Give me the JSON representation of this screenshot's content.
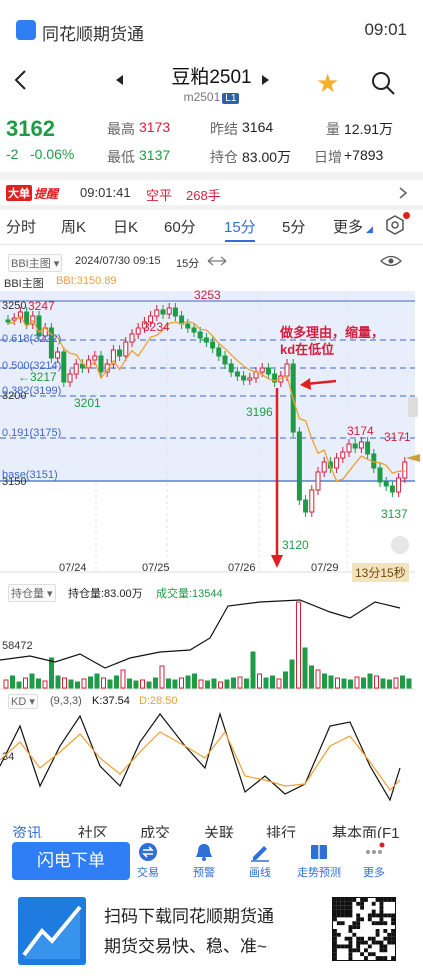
{
  "status": {
    "app_name": "同花顺期货通",
    "time": "09:01"
  },
  "header": {
    "title": "豆粕2501",
    "code": "m2501",
    "badge": "L1"
  },
  "quote": {
    "price": "3162",
    "change": "-2",
    "change_pct": "-0.06%",
    "high_label": "最高",
    "high": "3173",
    "low_label": "最低",
    "low": "3137",
    "prev_settle_label": "昨结",
    "prev_settle": "3164",
    "oi_label": "持仓",
    "oi": "83.00万",
    "vol_label": "量",
    "vol": "12.91万",
    "daily_inc_label": "日增",
    "daily_inc": "+7893"
  },
  "alert": {
    "tag1": "大单",
    "tag2": "提醒",
    "time": "09:01:41",
    "type": "空平",
    "qty": "268手"
  },
  "tabs": [
    {
      "label": "分时"
    },
    {
      "label": "周K"
    },
    {
      "label": "日K"
    },
    {
      "label": "60分"
    },
    {
      "label": "15分"
    },
    {
      "label": "5分"
    },
    {
      "label": "更多"
    }
  ],
  "active_tab": "15分",
  "chart_header": {
    "indicator": "BBI主图",
    "datetime": "2024/07/30 09:15",
    "period": "15分"
  },
  "main_chart": {
    "indicator_label": "BBI主图",
    "bbi_label": "BBI:3150.89",
    "y_labels": [
      "3250",
      "3200",
      "3150"
    ],
    "fib_labels": [
      "0.618(3222)",
      "0.500(3214)",
      "0.382(3199)",
      "0.191(3175)",
      "base(3151)"
    ],
    "price_marks": [
      "3247",
      "3217",
      "3201",
      "3234",
      "3253",
      "3196",
      "3120",
      "3174",
      "3171",
      "3137"
    ],
    "date_labels": [
      "07/24",
      "07/25",
      "07/26",
      "07/29"
    ],
    "annotation_line1": "做多理由，缩量，",
    "annotation_line2": "kd在低位",
    "countdown": "13分15秒"
  },
  "oi_panel": {
    "label": "持仓量",
    "oi": "持仓量:83.00万",
    "vol": "成交量:13544",
    "y_label": "58472"
  },
  "kd_panel": {
    "label": "KD",
    "params": "(9,3,3)",
    "k": "K:37.54",
    "d": "D:28.50",
    "y_label": "34"
  },
  "bottom_tabs": [
    "资讯",
    "社区",
    "成交",
    "关联",
    "排行",
    "基本面(F1"
  ],
  "toolbar": {
    "flash_button": "闪电下单",
    "tools": [
      {
        "label": "交易",
        "icon": "trade-icon"
      },
      {
        "label": "预警",
        "icon": "bell-icon"
      },
      {
        "label": "画线",
        "icon": "pen-icon"
      },
      {
        "label": "走势预测",
        "icon": "book-icon"
      },
      {
        "label": "更多",
        "icon": "more-icon"
      }
    ]
  },
  "footer": {
    "line1": "扫码下载同花顺期货通",
    "line2": "期货交易快、稳、准~"
  },
  "colors": {
    "up": "#d21f3c",
    "down": "#1e9b45",
    "accent": "#2f6fd8",
    "bbi": "#f0a030",
    "fib": "#3f66c9"
  }
}
